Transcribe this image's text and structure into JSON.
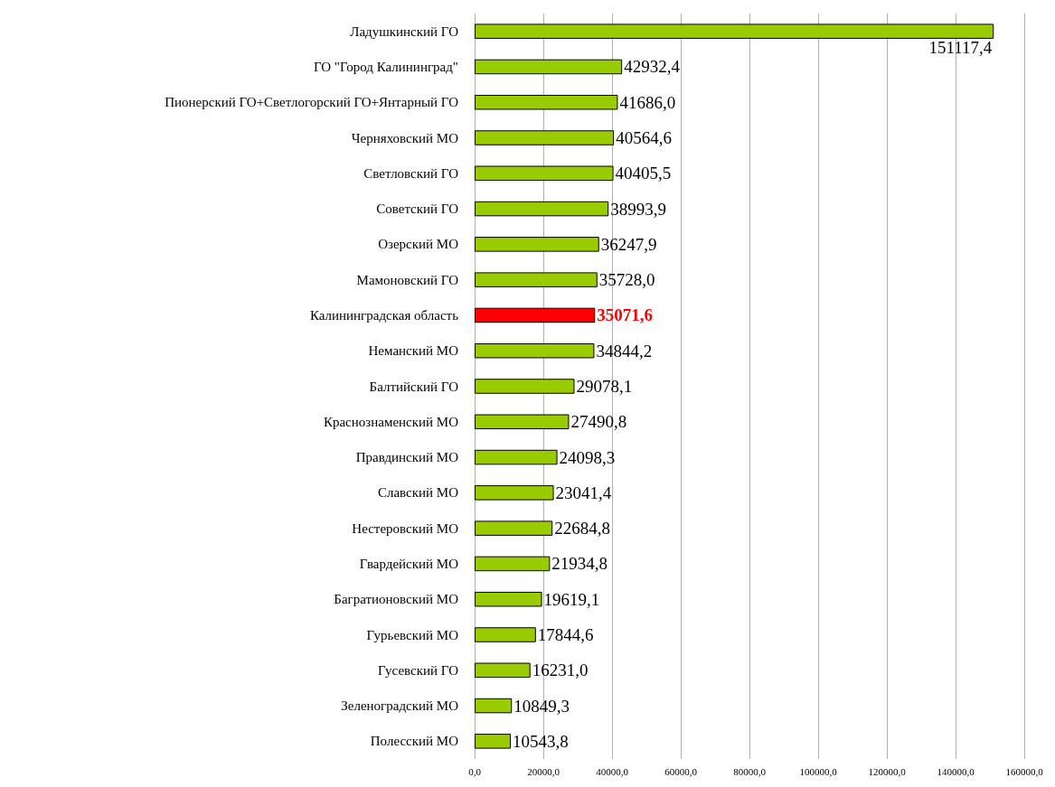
{
  "chart_data": {
    "type": "bar",
    "orientation": "horizontal",
    "categories": [
      "Ладушкинский ГО",
      "ГО \"Город Калининград\"",
      "Пионерский ГО+Светлогорский ГО+Янтарный ГО",
      "Черняховский МО",
      "Светловский ГО",
      "Советский ГО",
      "Озерский МО",
      "Мамоновский ГО",
      "Калининградская область",
      "Неманский МО",
      "Балтийский ГО",
      "Краснознаменский МО",
      "Правдинский МО",
      "Славский МО",
      "Нестеровский МО",
      "Гвардейский МО",
      "Багратионовский МО",
      "Гурьевский МО",
      "Гусевский ГО",
      "Зеленоградский МО",
      "Полесский МО"
    ],
    "values": [
      151117.4,
      42932.4,
      41686.0,
      40564.6,
      40405.5,
      38993.9,
      36247.9,
      35728.0,
      35071.6,
      34844.2,
      29078.1,
      27490.8,
      24098.3,
      23041.4,
      22684.8,
      21934.8,
      19619.1,
      17844.6,
      16231.0,
      10849.3,
      10543.8
    ],
    "value_labels": [
      "151117,4",
      "42932,4",
      "41686,0",
      "40564,6",
      "40405,5",
      "38993,9",
      "36247,9",
      "35728,0",
      "35071,6",
      "34844,2",
      "29078,1",
      "27490,8",
      "24098,3",
      "23041,4",
      "22684,8",
      "21934,8",
      "19619,1",
      "17844,6",
      "16231,0",
      "10849,3",
      "10543,8"
    ],
    "colors": [
      "#99cc00",
      "#99cc00",
      "#99cc00",
      "#99cc00",
      "#99cc00",
      "#99cc00",
      "#99cc00",
      "#99cc00",
      "#ff0000",
      "#99cc00",
      "#99cc00",
      "#99cc00",
      "#99cc00",
      "#99cc00",
      "#99cc00",
      "#99cc00",
      "#99cc00",
      "#99cc00",
      "#99cc00",
      "#99cc00",
      "#99cc00"
    ],
    "xlim": [
      0,
      160000
    ],
    "xticks": [
      {
        "value": 0,
        "label": "0,0"
      },
      {
        "value": 20000,
        "label": "20000,0"
      },
      {
        "value": 40000,
        "label": "40000,0"
      },
      {
        "value": 60000,
        "label": "60000,0"
      },
      {
        "value": 80000,
        "label": "80000,0"
      },
      {
        "value": 100000,
        "label": "100000,0"
      },
      {
        "value": 120000,
        "label": "120000,0"
      },
      {
        "value": 140000,
        "label": "140000,0"
      },
      {
        "value": 160000,
        "label": "160000,0"
      }
    ],
    "grid": "x"
  }
}
